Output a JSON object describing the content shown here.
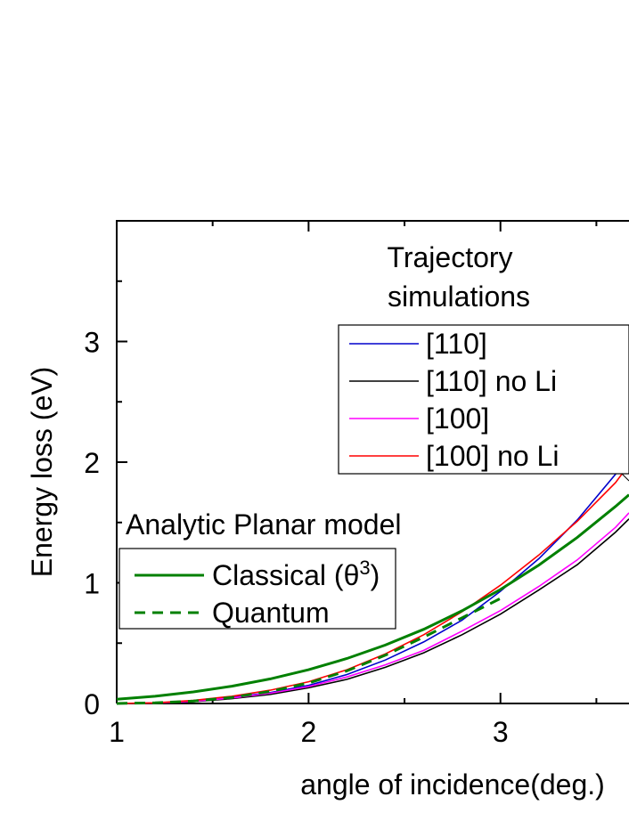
{
  "chart_data": {
    "type": "line",
    "xlabel": "angle of incidence(deg.)",
    "ylabel": "Energy loss (eV)",
    "xlim": [
      1,
      3.67
    ],
    "ylim": [
      0,
      4.0
    ],
    "xticks": [
      1,
      2,
      3
    ],
    "yticks": [
      0,
      1,
      2,
      3
    ],
    "grid": false,
    "groups": [
      {
        "title_lines": [
          "Trajectory",
          "simulations"
        ],
        "legend_position": "upper-right",
        "series": [
          {
            "name": "[110]",
            "color": "#0000cc",
            "dash": "solid",
            "x": [
              1.0,
              1.2,
              1.4,
              1.6,
              1.8,
              2.0,
              2.2,
              2.4,
              2.6,
              2.8,
              3.0,
              3.2,
              3.4,
              3.6,
              3.67
            ],
            "y": [
              0.0,
              0.004,
              0.02,
              0.05,
              0.09,
              0.15,
              0.24,
              0.36,
              0.51,
              0.69,
              0.93,
              1.2,
              1.52,
              1.9,
              2.1
            ]
          },
          {
            "name": "[110] no Li",
            "color": "#000000",
            "dash": "solid",
            "x": [
              1.0,
              1.2,
              1.4,
              1.6,
              1.8,
              2.0,
              2.2,
              2.4,
              2.6,
              2.8,
              3.0,
              3.2,
              3.4,
              3.6,
              3.67
            ],
            "y": [
              0.0,
              0.003,
              0.015,
              0.04,
              0.075,
              0.13,
              0.2,
              0.3,
              0.42,
              0.57,
              0.74,
              0.94,
              1.15,
              1.42,
              1.53
            ]
          },
          {
            "name": "[100]",
            "color": "#ff00ff",
            "dash": "solid",
            "x": [
              1.0,
              1.2,
              1.4,
              1.6,
              1.8,
              2.0,
              2.2,
              2.4,
              2.6,
              2.8,
              3.0,
              3.2,
              3.4,
              3.6,
              3.67
            ],
            "y": [
              0.0,
              0.004,
              0.018,
              0.045,
              0.085,
              0.14,
              0.22,
              0.32,
              0.44,
              0.6,
              0.77,
              0.97,
              1.19,
              1.46,
              1.58
            ]
          },
          {
            "name": "[100] no Li",
            "color": "#ff0000",
            "dash": "solid",
            "x": [
              1.0,
              1.2,
              1.4,
              1.6,
              1.8,
              2.0,
              2.2,
              2.4,
              2.6,
              2.8,
              3.0,
              3.2,
              3.4,
              3.6,
              3.67
            ],
            "y": [
              0.0,
              0.005,
              0.025,
              0.06,
              0.11,
              0.18,
              0.28,
              0.41,
              0.57,
              0.76,
              0.98,
              1.23,
              1.51,
              1.83,
              1.98
            ]
          }
        ]
      },
      {
        "title_lines": [
          "Analytic Planar model"
        ],
        "legend_position": "middle-left",
        "series": [
          {
            "name": "Classical (θ",
            "name_sup": "3",
            "name_suffix": ")",
            "color": "#008000",
            "dash": "solid",
            "x": [
              1.0,
              1.2,
              1.4,
              1.6,
              1.8,
              2.0,
              2.2,
              2.4,
              2.6,
              2.8,
              3.0,
              3.2,
              3.4,
              3.6,
              3.67
            ],
            "y": [
              0.035,
              0.06,
              0.096,
              0.143,
              0.204,
              0.28,
              0.373,
              0.484,
              0.615,
              0.768,
              0.945,
              1.147,
              1.376,
              1.633,
              1.73
            ]
          },
          {
            "name": "Quantum",
            "color": "#008000",
            "dash": "dashed",
            "x": [
              1.0,
              1.2,
              1.4,
              1.6,
              1.8,
              2.0,
              2.2,
              2.4,
              2.6,
              2.8,
              3.0
            ],
            "y": [
              0.0,
              0.005,
              0.02,
              0.05,
              0.1,
              0.17,
              0.27,
              0.4,
              0.55,
              0.71,
              0.87
            ]
          }
        ]
      }
    ]
  }
}
